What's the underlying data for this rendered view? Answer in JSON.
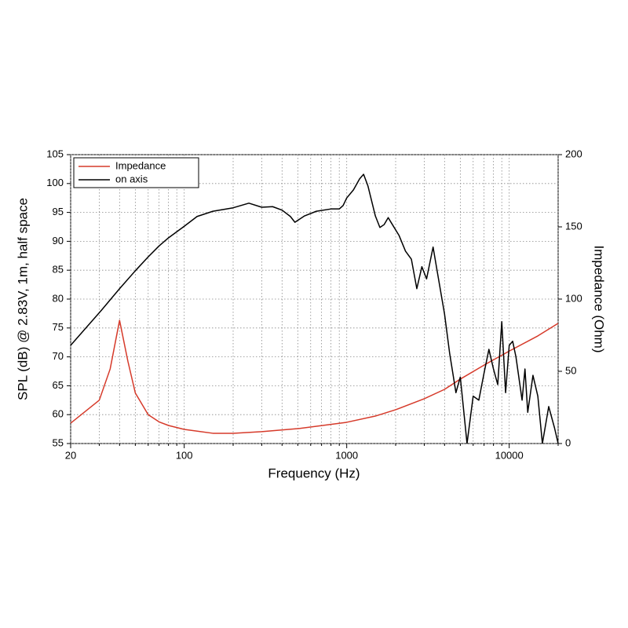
{
  "chart_data": {
    "type": "line",
    "xlabel": "Frequency (Hz)",
    "ylabel": "SPL (dB) @ 2.83V, 1m, half space",
    "y2label": "Impedance (Ohm)",
    "xscale": "log",
    "xlim": [
      20,
      20000
    ],
    "xticks": [
      20,
      100,
      1000,
      10000
    ],
    "x_minor_ticks": [
      30,
      40,
      50,
      60,
      70,
      80,
      90,
      200,
      300,
      400,
      500,
      600,
      700,
      800,
      900,
      2000,
      3000,
      4000,
      5000,
      6000,
      7000,
      8000,
      9000,
      20000
    ],
    "ylim": [
      55,
      105
    ],
    "yticks": [
      55,
      60,
      65,
      70,
      75,
      80,
      85,
      90,
      95,
      100,
      105
    ],
    "y2lim": [
      0,
      200
    ],
    "y2ticks": [
      0,
      50,
      100,
      150,
      200
    ],
    "grid": true,
    "legend": "upper left",
    "series": [
      {
        "name": "Impedance",
        "color": "#d63a2a",
        "axis": "y2",
        "x": [
          20,
          30,
          35,
          40,
          45,
          50,
          60,
          70,
          80,
          100,
          150,
          200,
          300,
          500,
          1000,
          1500,
          2000,
          3000,
          4000,
          5000,
          7000,
          10000,
          15000,
          20000
        ],
        "values": [
          14.1,
          30,
          51.6,
          85.3,
          57,
          35,
          20,
          15,
          12.5,
          9.8,
          7.1,
          7.1,
          8.2,
          10.3,
          14.7,
          19,
          23.4,
          31,
          37.5,
          44.6,
          54.3,
          64,
          74.5,
          83.2
        ]
      },
      {
        "name": "on axis",
        "color": "#000000",
        "axis": "y",
        "x": [
          20,
          31,
          40,
          50,
          60,
          70,
          80,
          100,
          120,
          150,
          200,
          250,
          300,
          350,
          400,
          450,
          480,
          550,
          650,
          800,
          900,
          950,
          1000,
          1100,
          1200,
          1270,
          1350,
          1500,
          1600,
          1700,
          1800,
          1900,
          2100,
          2300,
          2500,
          2700,
          2900,
          3100,
          3400,
          3600,
          4000,
          4300,
          4700,
          5000,
          5500,
          6000,
          6500,
          7000,
          7500,
          8000,
          8500,
          9000,
          9500,
          10000,
          10500,
          11000,
          12000,
          12500,
          13000,
          14000,
          15000,
          16000,
          17500,
          19000,
          20000
        ],
        "values": [
          72.0,
          78.1,
          81.8,
          84.9,
          87.3,
          89.2,
          90.6,
          92.6,
          94.3,
          95.2,
          95.8,
          96.6,
          95.9,
          96.0,
          95.4,
          94.3,
          93.3,
          94.4,
          95.2,
          95.6,
          95.6,
          96.2,
          97.5,
          98.9,
          100.8,
          101.6,
          99.6,
          94.4,
          92.4,
          92.9,
          94.1,
          93.0,
          91.0,
          88.3,
          86.9,
          81.8,
          85.6,
          83.5,
          89.0,
          84.9,
          77.4,
          70.6,
          63.8,
          66.5,
          55.0,
          63.2,
          62.5,
          67.2,
          71.3,
          67.9,
          65.2,
          76.1,
          63.8,
          72.0,
          72.7,
          70.0,
          62.5,
          67.9,
          60.4,
          66.8,
          63.2,
          55.0,
          61.4,
          57.7,
          55.0
        ]
      }
    ]
  }
}
